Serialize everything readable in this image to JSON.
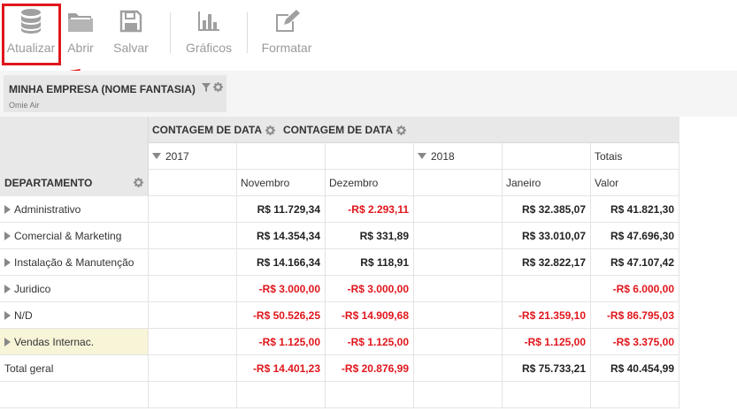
{
  "toolbar": {
    "refresh_label": "Atualizar",
    "open_label": "Abrir",
    "save_label": "Salvar",
    "charts_label": "Gráficos",
    "format_label": "Formatar"
  },
  "filter": {
    "title": "MINHA EMPRESA (NOME FANTASIA)",
    "value": "Omie Air"
  },
  "pivot": {
    "row_field": "DEPARTAMENTO",
    "column_fields": [
      "CONTAGEM DE DATA",
      "CONTAGEM DE DATA"
    ],
    "years": [
      "2017",
      "2018"
    ],
    "totals_header": "Totais",
    "months": [
      "Novembro",
      "Dezembro",
      "Janeiro"
    ],
    "value_header": "Valor",
    "rows": [
      {
        "label": "Administrativo",
        "nov": "R$ 11.729,34",
        "dez": "-R$ 2.293,11",
        "jan": "R$ 32.385,07",
        "total": "R$ 41.821,30"
      },
      {
        "label": "Comercial & Marketing",
        "nov": "R$ 14.354,34",
        "dez": "R$ 331,89",
        "jan": "R$ 33.010,07",
        "total": "R$ 47.696,30"
      },
      {
        "label": "Instalação & Manutenção",
        "nov": "R$ 14.166,34",
        "dez": "R$ 118,91",
        "jan": "R$ 32.822,17",
        "total": "R$ 47.107,42"
      },
      {
        "label": "Juridico",
        "nov": "-R$ 3.000,00",
        "dez": "-R$ 3.000,00",
        "jan": "",
        "total": "-R$ 6.000,00"
      },
      {
        "label": "N/D",
        "nov": "-R$ 50.526,25",
        "dez": "-R$ 14.909,68",
        "jan": "-R$ 21.359,10",
        "total": "-R$ 86.795,03"
      },
      {
        "label": "Vendas Internac.",
        "nov": "-R$ 1.125,00",
        "dez": "-R$ 1.125,00",
        "jan": "-R$ 1.125,00",
        "total": "-R$ 3.375,00"
      }
    ],
    "grand_total": {
      "label": "Total geral",
      "nov": "-R$ 14.401,23",
      "dez": "-R$ 20.876,99",
      "jan": "R$ 75.733,21",
      "total": "R$ 40.454,99"
    }
  },
  "colors": {
    "highlight": "#e0161c",
    "negative": "#e0161c",
    "selected_row": "#f7f4d8"
  }
}
